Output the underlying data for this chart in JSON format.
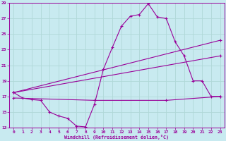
{
  "xlabel": "Windchill (Refroidissement éolien,°C)",
  "bg_color": "#c8eaf0",
  "grid_color": "#b0d8d8",
  "line_color": "#990099",
  "xlim": [
    -0.5,
    23.5
  ],
  "ylim": [
    13,
    29
  ],
  "xticks": [
    0,
    1,
    2,
    3,
    4,
    5,
    6,
    7,
    8,
    9,
    10,
    11,
    12,
    13,
    14,
    15,
    16,
    17,
    18,
    19,
    20,
    21,
    22,
    23
  ],
  "yticks": [
    13,
    15,
    17,
    19,
    21,
    23,
    25,
    27,
    29
  ],
  "line1_x": [
    0,
    1,
    2,
    3,
    4,
    5,
    6,
    7,
    8,
    9,
    10,
    11,
    12,
    13,
    14,
    15,
    16,
    17,
    18,
    19,
    20,
    21,
    22,
    23
  ],
  "line1_y": [
    17.5,
    16.8,
    16.6,
    16.5,
    15.0,
    14.5,
    14.2,
    13.2,
    13.1,
    16.0,
    20.5,
    23.3,
    26.0,
    27.3,
    27.5,
    28.9,
    27.2,
    27.0,
    24.0,
    22.2,
    19.0,
    19.0,
    17.0,
    17.0
  ],
  "line2_x": [
    0,
    23
  ],
  "line2_y": [
    17.5,
    22.2
  ],
  "line3_x": [
    0,
    23
  ],
  "line3_y": [
    17.5,
    24.2
  ],
  "line4_x": [
    0,
    9,
    17,
    23
  ],
  "line4_y": [
    16.8,
    16.5,
    16.5,
    17.0
  ],
  "marker": "+"
}
